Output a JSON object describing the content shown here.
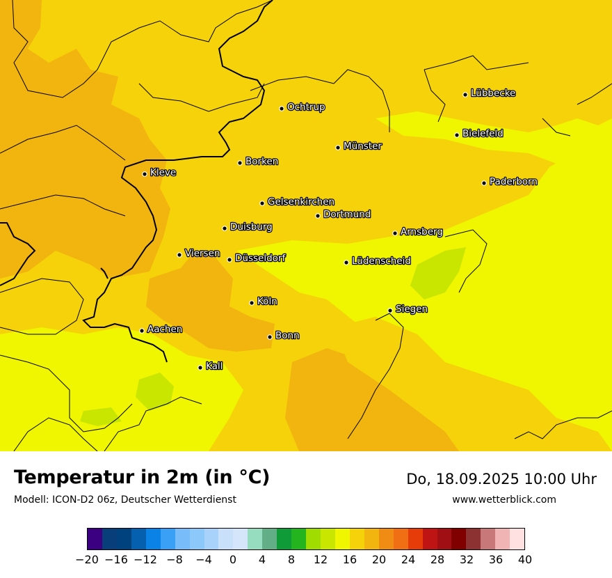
{
  "map": {
    "cities": [
      {
        "name": "Lübbecke"
      },
      {
        "name": "Ochtrup"
      },
      {
        "name": "Bielefeld"
      },
      {
        "name": "Münster"
      },
      {
        "name": "Borken"
      },
      {
        "name": "Kleve"
      },
      {
        "name": "Paderborn"
      },
      {
        "name": "Gelsenkirchen"
      },
      {
        "name": "Dortmund"
      },
      {
        "name": "Duisburg"
      },
      {
        "name": "Arnsberg"
      },
      {
        "name": "Viersen"
      },
      {
        "name": "Düsseldorf"
      },
      {
        "name": "Lüdenscheid"
      },
      {
        "name": "Köln"
      },
      {
        "name": "Siegen"
      },
      {
        "name": "Aachen"
      },
      {
        "name": "Bonn"
      },
      {
        "name": "Kall"
      }
    ],
    "colors": {
      "warm_orange": "#f2b40f",
      "yellow_orange": "#f5d20a",
      "yellow": "#f0f500",
      "yellow_green": "#c8e600",
      "boundary": "#000000"
    }
  },
  "footer": {
    "title": "Temperatur in 2m (in °C)",
    "model": "Modell: ICON-D2 06z, Deutscher Wetterdienst",
    "datetime": "Do, 18.09.2025 10:00 Uhr",
    "website": "www.wetterblick.com"
  },
  "legend": {
    "colors": [
      "#3b0082",
      "#083f7a",
      "#00427d",
      "#0560b0",
      "#0a82e6",
      "#3aa0f5",
      "#78bcfa",
      "#8cc8fa",
      "#a8d2fa",
      "#c8e0fa",
      "#d6e6fa",
      "#96dcbe",
      "#62af87",
      "#0f9b37",
      "#23b41e",
      "#a0dc00",
      "#c8e600",
      "#f0f500",
      "#f5d20a",
      "#f2b40f",
      "#f08c14",
      "#f06e14",
      "#e63c0a",
      "#be1414",
      "#a00f14",
      "#800000",
      "#8c3232",
      "#c87878",
      "#f0b4b4",
      "#ffe1e1"
    ],
    "tick_labels": [
      "−20",
      "−16",
      "−12",
      "−8",
      "−4",
      "0",
      "4",
      "8",
      "12",
      "16",
      "20",
      "24",
      "28",
      "32",
      "36",
      "40"
    ],
    "range": [
      -20,
      40
    ],
    "unit": "°C"
  }
}
